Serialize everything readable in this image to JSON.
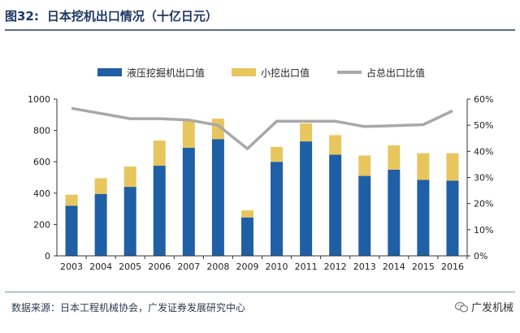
{
  "figure": {
    "number": "图32:",
    "title": "日本挖机出口情况（十亿日元）"
  },
  "source": "数据来源：日本工程机械协会，广发证券发展研究中心",
  "brand": "广发机械",
  "colors": {
    "hydraulic": "#1f5fa6",
    "mini": "#e8c65e",
    "ratio": "#a8a8a8",
    "title": "#1f3864"
  },
  "chart_data": {
    "type": "bar",
    "stacked": true,
    "categories": [
      "2003",
      "2004",
      "2005",
      "2006",
      "2007",
      "2008",
      "2009",
      "2010",
      "2011",
      "2012",
      "2013",
      "2014",
      "2015",
      "2016"
    ],
    "series": [
      {
        "name": "液压挖掘机出口值",
        "type": "bar",
        "axis": "left",
        "values": [
          320,
          395,
          440,
          575,
          690,
          745,
          245,
          600,
          730,
          645,
          510,
          550,
          485,
          480
        ]
      },
      {
        "name": "小挖出口值",
        "type": "bar",
        "axis": "left",
        "values": [
          70,
          100,
          130,
          160,
          175,
          130,
          45,
          95,
          115,
          125,
          130,
          155,
          170,
          175
        ]
      },
      {
        "name": "占总出口比值",
        "type": "line",
        "axis": "right",
        "values": [
          56.5,
          54.5,
          52.5,
          52.5,
          52,
          50,
          41,
          51.5,
          51.5,
          51.5,
          49.5,
          49.8,
          50.2,
          55.5
        ]
      }
    ],
    "y_left": {
      "min": 0,
      "max": 1000,
      "step": 200,
      "ticks": [
        "0",
        "200",
        "400",
        "600",
        "800",
        "1000"
      ]
    },
    "y_right": {
      "min": 0,
      "max": 60,
      "step": 10,
      "ticks": [
        "0%",
        "10%",
        "20%",
        "30%",
        "40%",
        "50%",
        "60%"
      ]
    },
    "legend_position": "top",
    "grid": false
  }
}
